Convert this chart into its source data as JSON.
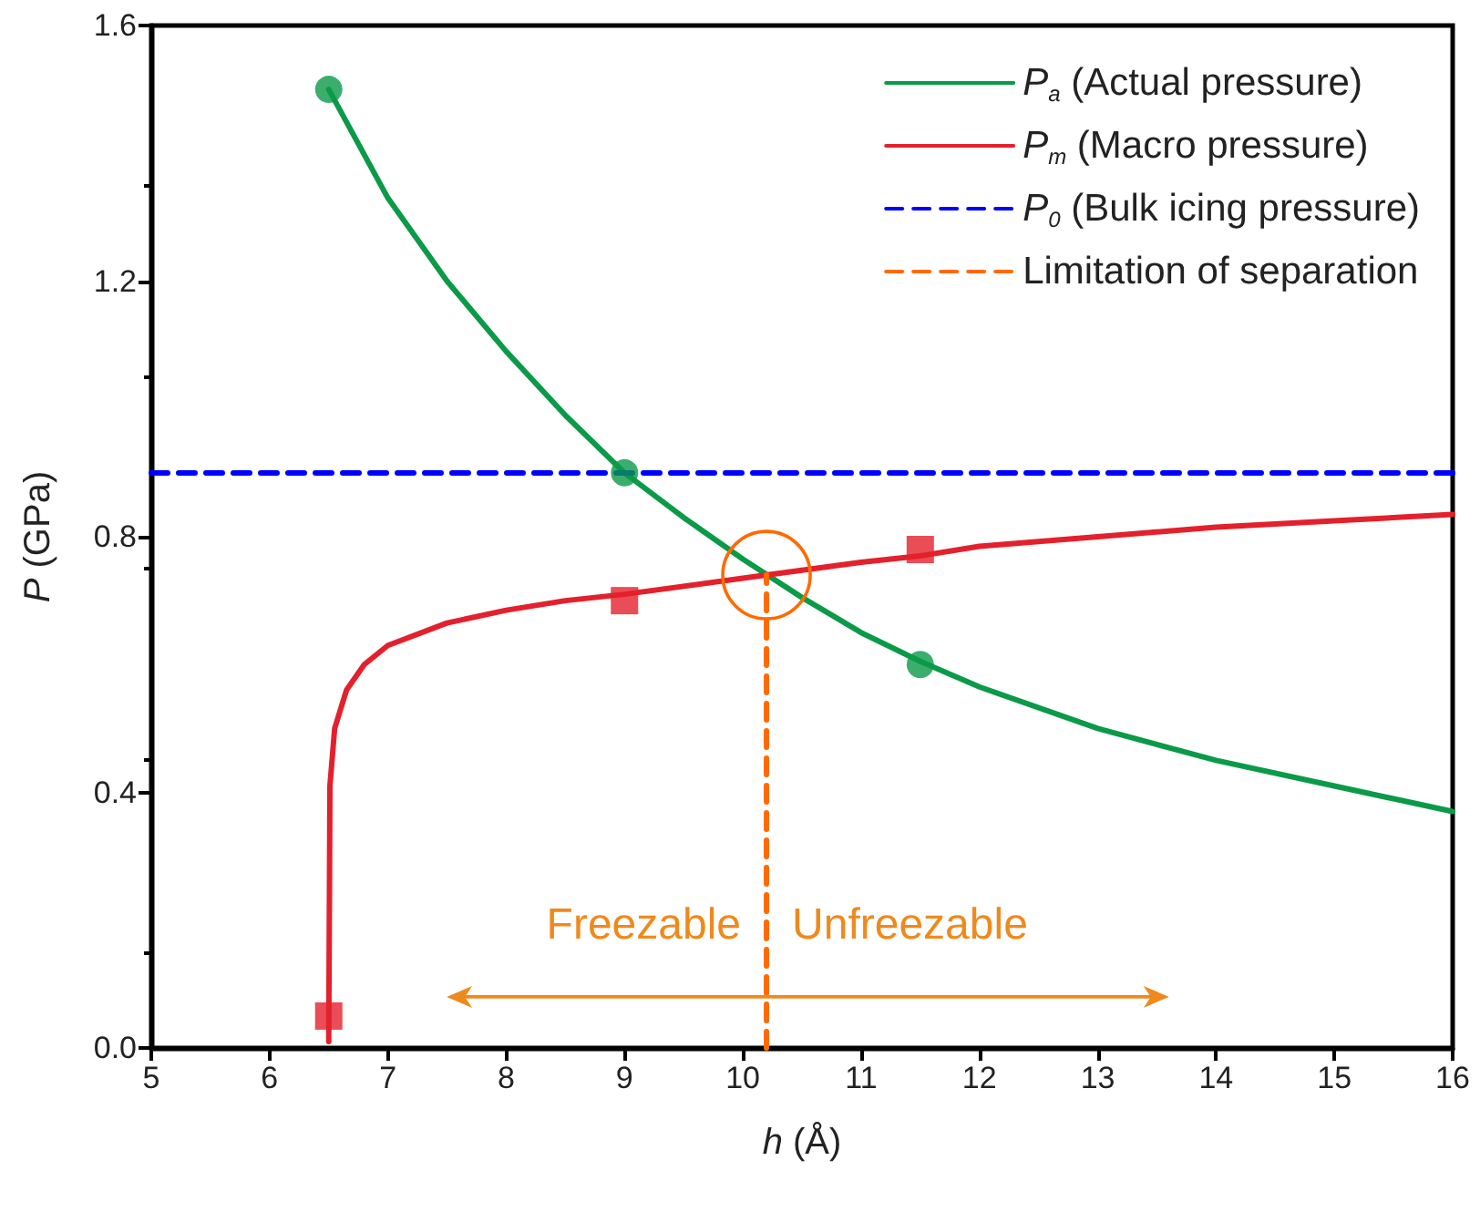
{
  "chart_data": {
    "type": "line",
    "xlabel": "h (Å)",
    "ylabel": "P (GPa)",
    "xlim": [
      5,
      16
    ],
    "xticks": [
      5,
      6,
      7,
      8,
      9,
      10,
      11,
      12,
      13,
      14,
      15,
      16
    ],
    "ylim": [
      0,
      1.6
    ],
    "yticks": [
      {
        "value": 0,
        "label": "0.0"
      },
      {
        "value": 0.4,
        "label": "0.4"
      },
      {
        "value": 0.8,
        "label": "0.8"
      },
      {
        "value": 1.2,
        "label": "1.2"
      },
      {
        "value": 1.6,
        "label": "1.6"
      }
    ],
    "grid": false,
    "legend": "top right",
    "series": [
      {
        "name": "P$_{a}$ (Actual pressure)",
        "color": "#0a9a48",
        "line_style": "solid",
        "x": [
          6.5,
          7,
          7.5,
          8,
          8.5,
          9,
          9.5,
          10,
          10.5,
          11,
          11.5,
          12,
          13,
          14,
          15,
          16
        ],
        "values": [
          1.5,
          1.33,
          1.2,
          1.09,
          0.99,
          0.9,
          0.83,
          0.765,
          0.705,
          0.65,
          0.605,
          0.565,
          0.5,
          0.45,
          0.41,
          0.37
        ]
      },
      {
        "type": "scatter",
        "marker": "circle",
        "color": "#0a9a48",
        "x": [
          6.5,
          9,
          11.5
        ],
        "values": [
          1.5,
          0.9,
          0.6
        ]
      },
      {
        "name": "P$_{m}$ (Macro pressure)",
        "color": "#e3202c",
        "line_style": "solid",
        "x": [
          6.5,
          6.51,
          6.55,
          6.65,
          6.8,
          7,
          7.5,
          8,
          8.5,
          9,
          10,
          10.2,
          11,
          11.5,
          12,
          13,
          14,
          15,
          16
        ],
        "values": [
          0.01,
          0.41,
          0.5,
          0.56,
          0.6,
          0.63,
          0.665,
          0.685,
          0.7,
          0.71,
          0.735,
          0.74,
          0.76,
          0.77,
          0.785,
          0.8,
          0.815,
          0.825,
          0.835
        ]
      },
      {
        "type": "scatter",
        "marker": "square",
        "color": "#e3202c",
        "x": [
          6.5,
          9,
          11.5
        ],
        "values": [
          0.05,
          0.7,
          0.78
        ]
      },
      {
        "name": "P$_{0}$ (Bulk icing pressure)",
        "color": "#0000ff",
        "line_style": "dashed",
        "x": [
          5,
          16
        ],
        "values": [
          0.9,
          0.9
        ]
      },
      {
        "name": "Limitation of separation",
        "color": "#ff6a00",
        "line_style": "dashed",
        "x": [
          10.2,
          10.2
        ],
        "values": [
          0,
          0.74
        ]
      }
    ],
    "annotations": [
      "Freezable",
      "Unfreezable"
    ]
  }
}
